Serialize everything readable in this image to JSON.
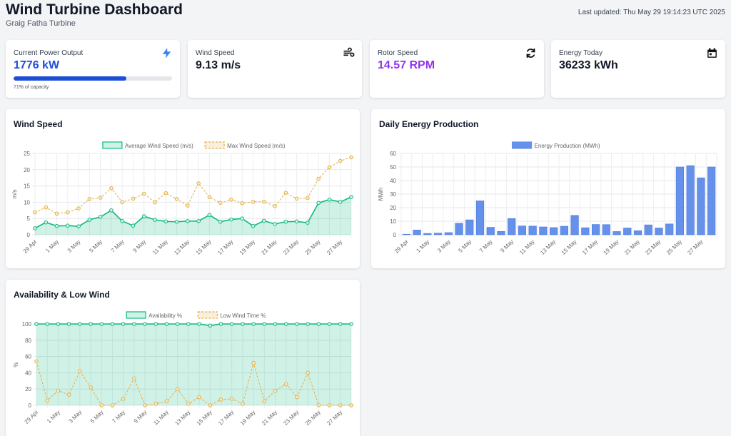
{
  "header": {
    "title": "Wind Turbine Dashboard",
    "subtitle": "Graig Fatha Turbine",
    "last_updated": "Last updated: Thu May 29 19:14:23 UTC 2025"
  },
  "stats": {
    "power": {
      "label": "Current Power Output",
      "value": "1776 kW",
      "capacity_fraction": 0.71,
      "caption": "71% of capacity",
      "icon": "lightning-icon",
      "color": "#1d4ed8"
    },
    "wind": {
      "label": "Wind Speed",
      "value": "9.13 m/s",
      "icon": "wind-icon"
    },
    "rotor": {
      "label": "Rotor Speed",
      "value": "14.57 RPM",
      "icon": "refresh-icon",
      "color": "#9333ea"
    },
    "energy": {
      "label": "Energy Today",
      "value": "36233 kWh",
      "icon": "calendar-icon"
    }
  },
  "panels": {
    "wind": {
      "title": "Wind Speed"
    },
    "energy": {
      "title": "Daily Energy Production"
    },
    "availability": {
      "title": "Availability & Low Wind"
    }
  },
  "chart_data": [
    {
      "id": "wind",
      "type": "line",
      "title": "Wind Speed",
      "ylabel": "m/s",
      "ylim": [
        0,
        25
      ],
      "yticks": [
        0,
        5,
        10,
        15,
        20,
        25
      ],
      "categories": [
        "29 Apr",
        "30 Apr",
        "1 May",
        "2 May",
        "3 May",
        "4 May",
        "5 May",
        "6 May",
        "7 May",
        "8 May",
        "9 May",
        "10 May",
        "11 May",
        "12 May",
        "13 May",
        "14 May",
        "15 May",
        "16 May",
        "17 May",
        "18 May",
        "19 May",
        "20 May",
        "21 May",
        "22 May",
        "23 May",
        "24 May",
        "25 May",
        "26 May",
        "27 May",
        "28 May"
      ],
      "tick_labels": [
        "29 Apr",
        "1 May",
        "3 May",
        "5 May",
        "7 May",
        "9 May",
        "11 May",
        "13 May",
        "15 May",
        "17 May",
        "19 May",
        "21 May",
        "23 May",
        "25 May",
        "27 May"
      ],
      "series": [
        {
          "name": "Average Wind Speed (m/s)",
          "color": "#10b981",
          "fill": "rgba(16,185,129,0.2)",
          "dashed": false,
          "values": [
            2.0,
            3.8,
            2.7,
            2.8,
            2.6,
            4.6,
            5.5,
            7.5,
            4.2,
            2.8,
            5.7,
            4.6,
            4.1,
            4.0,
            4.2,
            4.2,
            6.1,
            4.0,
            4.7,
            5.0,
            2.7,
            4.3,
            3.3,
            4.0,
            4.1,
            3.7,
            9.8,
            10.8,
            10.1,
            11.6
          ]
        },
        {
          "name": "Max Wind Speed (m/s)",
          "color": "#e2b04a",
          "fill": "rgba(226,176,74,0.2)",
          "dashed": true,
          "values": [
            6.9,
            8.4,
            6.5,
            6.9,
            8.1,
            11.0,
            11.4,
            14.3,
            10.0,
            11.1,
            12.6,
            10.0,
            12.8,
            11.0,
            9.0,
            15.8,
            11.6,
            9.8,
            10.8,
            9.7,
            10.1,
            10.2,
            8.8,
            12.9,
            11.1,
            11.3,
            17.2,
            20.7,
            22.7,
            23.8
          ]
        }
      ]
    },
    {
      "id": "energy",
      "type": "bar",
      "title": "Daily Energy Production",
      "ylabel": "MWh",
      "ylim": [
        0,
        60
      ],
      "yticks": [
        0,
        10,
        20,
        30,
        40,
        50,
        60
      ],
      "categories": [
        "29 Apr",
        "30 Apr",
        "1 May",
        "2 May",
        "3 May",
        "4 May",
        "5 May",
        "6 May",
        "7 May",
        "8 May",
        "9 May",
        "10 May",
        "11 May",
        "12 May",
        "13 May",
        "14 May",
        "15 May",
        "16 May",
        "17 May",
        "18 May",
        "19 May",
        "20 May",
        "21 May",
        "22 May",
        "23 May",
        "24 May",
        "25 May",
        "26 May",
        "27 May",
        "28 May"
      ],
      "tick_labels": [
        "29 Apr",
        "1 May",
        "3 May",
        "5 May",
        "7 May",
        "9 May",
        "11 May",
        "13 May",
        "15 May",
        "17 May",
        "19 May",
        "21 May",
        "23 May",
        "25 May",
        "27 May"
      ],
      "series": [
        {
          "name": "Energy Production (MWh)",
          "color": "#6591ea",
          "values": [
            0.4,
            3.5,
            1.0,
            1.2,
            1.6,
            8.5,
            11.0,
            25.0,
            5.5,
            2.5,
            12.0,
            6.5,
            6.4,
            5.8,
            5.3,
            6.3,
            14.3,
            5.2,
            7.6,
            7.5,
            2.4,
            5.0,
            3.0,
            7.3,
            5.0,
            8.0,
            50.0,
            51.0,
            42.0,
            50.0
          ]
        }
      ]
    },
    {
      "id": "availability",
      "type": "line",
      "title": "Availability & Low Wind",
      "ylabel": "%",
      "ylim": [
        0,
        100
      ],
      "yticks": [
        0,
        20,
        40,
        60,
        80,
        100
      ],
      "categories": [
        "29 Apr",
        "30 Apr",
        "1 May",
        "2 May",
        "3 May",
        "4 May",
        "5 May",
        "6 May",
        "7 May",
        "8 May",
        "9 May",
        "10 May",
        "11 May",
        "12 May",
        "13 May",
        "14 May",
        "15 May",
        "16 May",
        "17 May",
        "18 May",
        "19 May",
        "20 May",
        "21 May",
        "22 May",
        "23 May",
        "24 May",
        "25 May",
        "26 May",
        "27 May",
        "28 May"
      ],
      "tick_labels": [
        "29 Apr",
        "1 May",
        "3 May",
        "5 May",
        "7 May",
        "9 May",
        "11 May",
        "13 May",
        "15 May",
        "17 May",
        "19 May",
        "21 May",
        "23 May",
        "25 May",
        "27 May"
      ],
      "series": [
        {
          "name": "Availability %",
          "color": "#10b981",
          "fill": "rgba(16,185,129,0.2)",
          "dashed": false,
          "values": [
            100,
            100,
            100,
            100,
            100,
            100,
            100,
            100,
            100,
            100,
            100,
            100,
            100,
            100,
            100,
            100,
            98,
            100,
            100,
            100,
            100,
            100,
            100,
            100,
            100,
            100,
            100,
            100,
            100,
            100
          ]
        },
        {
          "name": "Low Wind Time %",
          "color": "#e2b04a",
          "fill": "rgba(226,176,74,0.2)",
          "dashed": true,
          "values": [
            54,
            6,
            18,
            13,
            42,
            22,
            0,
            0,
            8,
            33,
            0,
            2,
            5,
            20,
            2,
            10,
            0,
            7,
            8,
            2,
            52,
            5,
            18,
            26,
            10,
            40,
            0,
            0,
            0,
            0
          ]
        }
      ]
    }
  ]
}
